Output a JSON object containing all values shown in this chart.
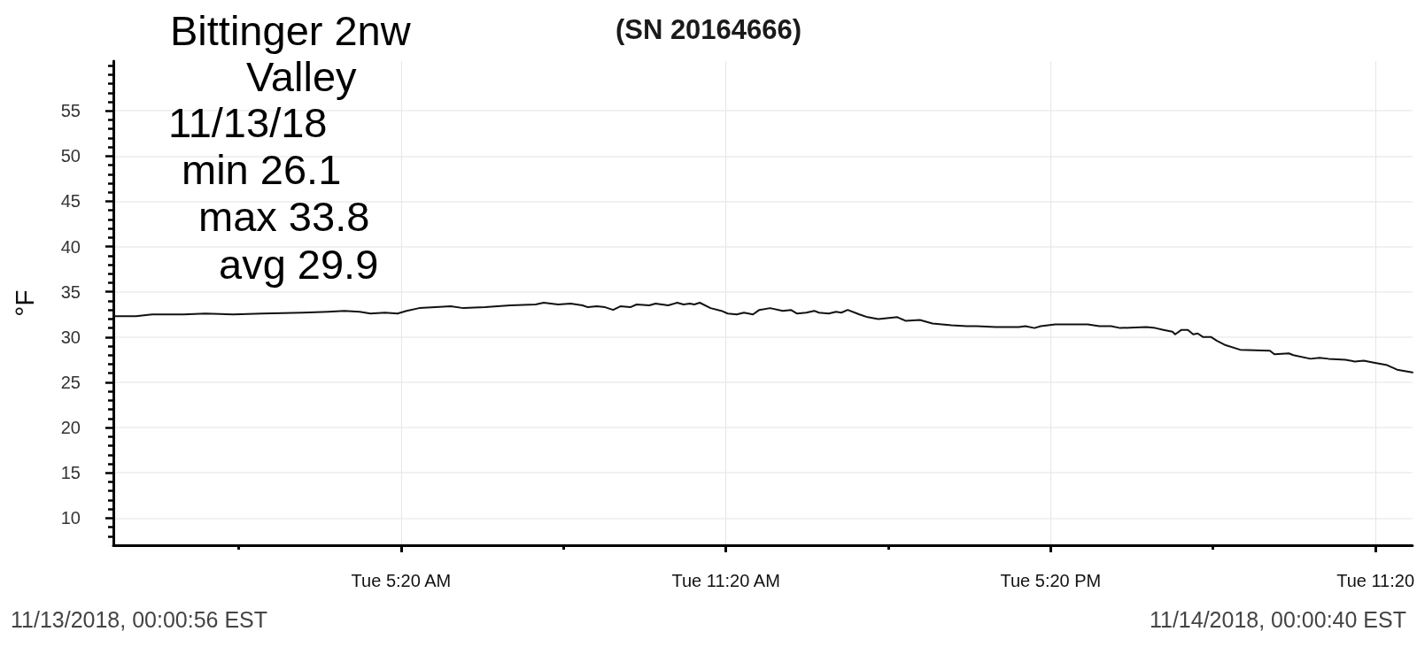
{
  "chart_data": {
    "type": "line",
    "title": "(SN 20164666)",
    "ylabel": "°F",
    "annotations": [
      "Bittinger 2nw",
      "Valley",
      "11/13/18",
      "min 26.1",
      "max 33.8",
      "avg 29.9",
      "11/13/2018, 00:00:56 EST",
      "11/14/2018, 00:00:40 EST"
    ],
    "x": [
      "2018-11-13T00:01",
      "2018-11-13T00:26",
      "2018-11-13T00:44",
      "2018-11-13T01:19",
      "2018-11-13T01:43",
      "2018-11-13T02:14",
      "2018-11-13T02:46",
      "2018-11-13T03:31",
      "2018-11-13T03:59",
      "2018-11-13T04:17",
      "2018-11-13T04:34",
      "2018-11-13T04:46",
      "2018-11-13T05:02",
      "2018-11-13T05:16",
      "2018-11-13T05:26",
      "2018-11-13T05:40",
      "2018-11-13T05:58",
      "2018-11-13T06:15",
      "2018-11-13T06:29",
      "2018-11-13T06:53",
      "2018-11-13T07:21",
      "2018-11-13T07:49",
      "2018-11-13T07:58",
      "2018-11-13T08:14",
      "2018-11-13T08:28",
      "2018-11-13T08:41",
      "2018-11-13T08:47",
      "2018-11-13T08:57",
      "2018-11-13T09:06",
      "2018-11-13T09:15",
      "2018-11-13T09:23",
      "2018-11-13T09:34",
      "2018-11-13T09:41",
      "2018-11-13T09:55",
      "2018-11-13T10:02",
      "2018-11-13T10:16",
      "2018-11-13T10:26",
      "2018-11-13T10:33",
      "2018-11-13T10:40",
      "2018-11-13T10:45",
      "2018-11-13T10:51",
      "2018-11-13T11:03",
      "2018-11-13T11:15",
      "2018-11-13T11:22",
      "2018-11-13T11:32",
      "2018-11-13T11:40",
      "2018-11-13T11:50",
      "2018-11-13T11:57",
      "2018-11-13T12:09",
      "2018-11-13T12:23",
      "2018-11-13T12:32",
      "2018-11-13T12:39",
      "2018-11-13T12:49",
      "2018-11-13T12:58",
      "2018-11-13T13:03",
      "2018-11-13T13:14",
      "2018-11-13T13:22",
      "2018-11-13T13:28",
      "2018-11-13T13:35",
      "2018-11-13T13:48",
      "2018-11-13T13:57",
      "2018-11-13T14:09",
      "2018-11-13T14:30",
      "2018-11-13T14:39",
      "2018-11-13T14:55",
      "2018-11-13T15:09",
      "2018-11-13T15:30",
      "2018-11-13T15:47",
      "2018-11-13T15:58",
      "2018-11-13T16:19",
      "2018-11-13T16:33",
      "2018-11-13T16:45",
      "2018-11-13T16:52",
      "2018-11-13T17:02",
      "2018-11-13T17:09",
      "2018-11-13T17:25",
      "2018-11-13T18:01",
      "2018-11-13T18:14",
      "2018-11-13T18:27",
      "2018-11-13T18:37",
      "2018-11-13T19:06",
      "2018-11-13T19:16",
      "2018-11-13T19:25",
      "2018-11-13T19:35",
      "2018-11-13T19:38",
      "2018-11-13T19:45",
      "2018-11-13T19:52",
      "2018-11-13T19:58",
      "2018-11-13T20:03",
      "2018-11-13T20:09",
      "2018-11-13T20:18",
      "2018-11-13T20:24",
      "2018-11-13T20:34",
      "2018-11-13T20:50",
      "2018-11-13T21:23",
      "2018-11-13T21:28",
      "2018-11-13T21:44",
      "2018-11-13T21:49",
      "2018-11-13T22:08",
      "2018-11-13T22:18",
      "2018-11-13T22:28",
      "2018-11-13T22:47",
      "2018-11-13T22:57",
      "2018-11-13T23:07",
      "2018-11-13T23:17",
      "2018-11-13T23:33",
      "2018-11-13T23:44",
      "2018-11-14T00:01"
    ],
    "values": [
      32.3,
      32.3,
      32.5,
      32.5,
      32.6,
      32.5,
      32.6,
      32.7,
      32.8,
      32.9,
      32.8,
      32.6,
      32.7,
      32.6,
      32.9,
      33.2,
      33.3,
      33.4,
      33.2,
      33.3,
      33.5,
      33.6,
      33.8,
      33.6,
      33.7,
      33.5,
      33.3,
      33.4,
      33.3,
      33.0,
      33.4,
      33.3,
      33.6,
      33.5,
      33.7,
      33.5,
      33.8,
      33.6,
      33.7,
      33.6,
      33.8,
      33.2,
      32.9,
      32.6,
      32.5,
      32.7,
      32.5,
      33.0,
      33.2,
      32.9,
      33.0,
      32.6,
      32.7,
      32.9,
      32.7,
      32.6,
      32.8,
      32.7,
      33.0,
      32.5,
      32.2,
      32.0,
      32.2,
      31.8,
      31.9,
      31.5,
      31.3,
      31.2,
      31.2,
      31.1,
      31.1,
      31.1,
      31.2,
      31.0,
      31.2,
      31.4,
      31.4,
      31.2,
      31.2,
      31.0,
      31.1,
      31.0,
      30.8,
      30.6,
      30.3,
      30.8,
      30.8,
      30.3,
      30.4,
      30.0,
      30.0,
      29.6,
      29.1,
      28.6,
      28.5,
      28.1,
      28.2,
      28.0,
      27.6,
      27.7,
      27.6,
      27.5,
      27.3,
      27.4,
      27.2,
      26.9,
      26.4,
      26.1
    ],
    "color": "#111111",
    "marker": "none",
    "line_style": "solid",
    "grid": true,
    "xlim": [
      "2018-11-13T00:01",
      "2018-11-14T00:01"
    ],
    "xticks": [
      {
        "value": "2018-11-13T02:20",
        "label": null
      },
      {
        "value": "2018-11-13T05:20",
        "label": "Tue 5:20 AM"
      },
      {
        "value": "2018-11-13T08:20",
        "label": null
      },
      {
        "value": "2018-11-13T11:20",
        "label": "Tue 11:20 AM"
      },
      {
        "value": "2018-11-13T14:20",
        "label": null
      },
      {
        "value": "2018-11-13T17:20",
        "label": "Tue 5:20 PM"
      },
      {
        "value": "2018-11-13T20:20",
        "label": null
      },
      {
        "value": "2018-11-13T23:20",
        "label": "Tue 11:20"
      }
    ],
    "ylim": [
      7,
      60.5
    ],
    "yticks": [
      {
        "value": 8,
        "label": null
      },
      {
        "value": 9,
        "label": null
      },
      10,
      {
        "value": 11,
        "label": null
      },
      {
        "value": 12,
        "label": null
      },
      {
        "value": 13,
        "label": null
      },
      {
        "value": 14,
        "label": null
      },
      15,
      {
        "value": 16,
        "label": null
      },
      {
        "value": 17,
        "label": null
      },
      {
        "value": 18,
        "label": null
      },
      {
        "value": 19,
        "label": null
      },
      20,
      {
        "value": 21,
        "label": null
      },
      {
        "value": 22,
        "label": null
      },
      {
        "value": 23,
        "label": null
      },
      {
        "value": 24,
        "label": null
      },
      25,
      {
        "value": 26,
        "label": null
      },
      {
        "value": 27,
        "label": null
      },
      {
        "value": 28,
        "label": null
      },
      {
        "value": 29,
        "label": null
      },
      30,
      {
        "value": 31,
        "label": null
      },
      {
        "value": 32,
        "label": null
      },
      {
        "value": 33,
        "label": null
      },
      {
        "value": 34,
        "label": null
      },
      35,
      {
        "value": 36,
        "label": null
      },
      {
        "value": 37,
        "label": null
      },
      {
        "value": 38,
        "label": null
      },
      {
        "value": 39,
        "label": null
      },
      40,
      {
        "value": 41,
        "label": null
      },
      {
        "value": 42,
        "label": null
      },
      {
        "value": 43,
        "label": null
      },
      {
        "value": 44,
        "label": null
      },
      45,
      {
        "value": 46,
        "label": null
      },
      {
        "value": 47,
        "label": null
      },
      {
        "value": 48,
        "label": null
      },
      {
        "value": 49,
        "label": null
      },
      50,
      {
        "value": 51,
        "label": null
      },
      {
        "value": 52,
        "label": null
      },
      {
        "value": 53,
        "label": null
      },
      {
        "value": 54,
        "label": null
      },
      55,
      {
        "value": 56,
        "label": null
      },
      {
        "value": 57,
        "label": null
      },
      {
        "value": 58,
        "label": null
      },
      {
        "value": 59,
        "label": null
      },
      {
        "value": 60,
        "label": null
      }
    ]
  }
}
